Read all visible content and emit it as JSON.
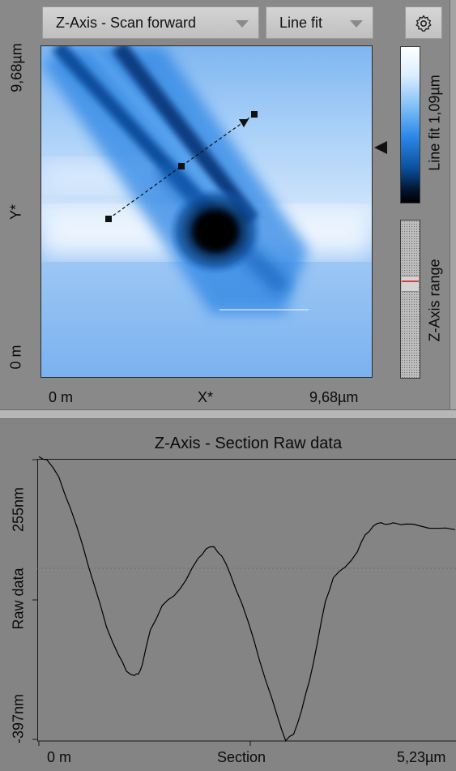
{
  "toolbar": {
    "channel_dropdown": "Z-Axis - Scan forward",
    "filter_dropdown": "Line fit",
    "settings_icon": "gear-icon"
  },
  "image_view": {
    "y_axis_label": "Y*",
    "y_top_tick": "9,68µm",
    "y_bottom_tick": "0 m",
    "x_axis_label": "X*",
    "x_left_tick": "0 m",
    "x_right_tick": "9,68µm",
    "colorbar_label": "Line fit 1,09µm",
    "range_label": "Z-Axis range"
  },
  "colors": {
    "panel_background": "#898989",
    "image_light": "#e9f2fd",
    "image_dark": "#000000",
    "profile_line": "#000000",
    "range_marker": "#d93d3d"
  },
  "section_plot": {
    "title": "Z-Axis - Section   Raw data",
    "y_axis_label": "Raw data",
    "y_top_tick": "255nm",
    "y_bottom_tick": "-397nm",
    "x_left_tick": "0 m",
    "x_center_label": "Section",
    "x_right_tick": "5,23µm"
  },
  "chart_data": {
    "type": "line",
    "title": "Z-Axis - Section   Raw data",
    "xlabel": "Section",
    "ylabel": "Raw data",
    "xlim": [
      0,
      5.23
    ],
    "ylim": [
      -397,
      255
    ],
    "x_unit": "µm",
    "y_unit": "nm",
    "series": [
      {
        "x": [
          0,
          0.1,
          0.25,
          0.4,
          0.55,
          0.7,
          0.85,
          1.0,
          1.1,
          1.2,
          1.25,
          1.3,
          1.4,
          1.55,
          1.7,
          1.85,
          2.0,
          2.1,
          2.2,
          2.3,
          2.4,
          2.55,
          2.7,
          2.85,
          3.0,
          3.1,
          3.2,
          3.3,
          3.4,
          3.5,
          3.6,
          3.7,
          3.85,
          4.0,
          4.1,
          4.2,
          4.3,
          4.4,
          4.5,
          4.6,
          4.8,
          5.0,
          5.23
        ],
        "y": [
          262,
          255,
          215,
          140,
          55,
          -40,
          -135,
          -200,
          -238,
          -248,
          -245,
          -222,
          -142,
          -85,
          -62,
          -25,
          25,
          47,
          52,
          30,
          -10,
          -80,
          -165,
          -260,
          -345,
          -400,
          -385,
          -330,
          -260,
          -170,
          -75,
          -20,
          5,
          40,
          80,
          100,
          108,
          105,
          106,
          105,
          100,
          95,
          92
        ]
      }
    ]
  }
}
